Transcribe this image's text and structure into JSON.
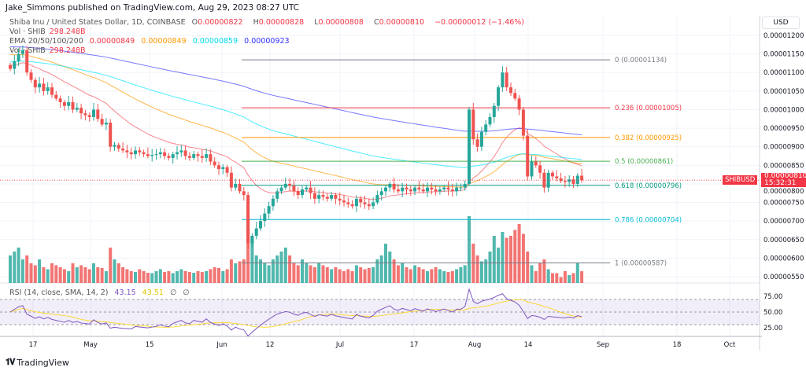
{
  "header": {
    "publisher": "Jake_Simmons published on TradingView.com, Aug 29, 2023 08:27 UTC"
  },
  "legend": {
    "symbol": "Shiba Inu / United States Dollar, 1D, COINBASE",
    "o_label": "O",
    "o": "0.00000822",
    "h_label": "H",
    "h": "0.00000828",
    "l_label": "L",
    "l": "0.00000808",
    "c_label": "C",
    "c": "0.00000810",
    "change": "−0.00000012 (−1.46%)",
    "vol_label": "Vol · SHIB",
    "vol": "298.248B",
    "ema_label": "EMA 20/50/100/200",
    "ema20": "0.00000849",
    "ema50": "0.00000849",
    "ema100": "0.00000859",
    "ema200": "0.00000923",
    "rsi_label": "RSI (14, close, SMA, 14, 2)",
    "rsi": "43.15",
    "rsi_sma": "43.51",
    "rsi_extra1": "∅",
    "rsi_extra2": "∅"
  },
  "axis": {
    "currency": "USD",
    "current_symbol": "SHIBUSD",
    "current_price": "0.00000810",
    "countdown": "15:32:31"
  },
  "brand": "TradingView",
  "colors": {
    "up": "#26a69a",
    "down": "#ef5350",
    "ema20": "#f7525f",
    "ema50": "#ff9800",
    "ema100": "#00e5ff",
    "ema200": "#3f3fff",
    "rsi": "#7e57c2",
    "rsi_sma": "#fdd835"
  },
  "chart_data": {
    "type": "candlestick",
    "start_date": "2023-04-14",
    "price_unit": "1e-8 USD",
    "ylim": [
      5.2e-06,
      1.21e-05
    ],
    "y_ticks": [
      "0.00001200",
      "0.00001150",
      "0.00001100",
      "0.00001050",
      "0.00001000",
      "0.00000950",
      "0.00000900",
      "0.00000850",
      "0.00000800",
      "0.00000750",
      "0.00000700",
      "0.00000650",
      "0.00000600",
      "0.00000550"
    ],
    "x_ticks": [
      "17",
      "May",
      "15",
      "Jun",
      "12",
      "Jul",
      "17",
      "Aug",
      "14",
      "Sep",
      "18",
      "Oct"
    ],
    "rsi_ticks": [
      "75.00",
      "50.00",
      "25.00"
    ],
    "close": [
      1110,
      1130,
      1150,
      1160,
      1100,
      1080,
      1060,
      1070,
      1050,
      1060,
      1040,
      1030,
      1020,
      1010,
      1020,
      1000,
      1005,
      990,
      985,
      980,
      1000,
      975,
      960,
      965,
      900,
      905,
      895,
      890,
      885,
      880,
      890,
      885,
      880,
      875,
      878,
      880,
      885,
      875,
      870,
      880,
      885,
      890,
      875,
      870,
      880,
      875,
      870,
      880,
      860,
      850,
      840,
      845,
      830,
      790,
      800,
      780,
      770,
      640,
      660,
      680,
      700,
      720,
      740,
      760,
      780,
      790,
      800,
      795,
      780,
      770,
      785,
      790,
      775,
      760,
      770,
      765,
      760,
      770,
      760,
      755,
      750,
      745,
      740,
      760,
      750,
      745,
      740,
      750,
      770,
      780,
      790,
      800,
      785,
      780,
      790,
      785,
      780,
      790,
      785,
      780,
      790,
      785,
      780,
      785,
      790,
      785,
      780,
      790,
      790,
      800,
      1000,
      920,
      900,
      940,
      960,
      980,
      1010,
      1060,
      1100,
      1060,
      1045,
      1030,
      1000,
      930,
      820,
      860,
      850,
      830,
      790,
      830,
      820,
      815,
      808,
      805,
      812,
      800,
      822,
      810
    ],
    "volume_B": [
      700,
      800,
      900,
      600,
      700,
      500,
      450,
      600,
      400,
      350,
      500,
      450,
      400,
      350,
      300,
      500,
      400,
      450,
      400,
      350,
      500,
      400,
      380,
      300,
      900,
      600,
      500,
      400,
      350,
      300,
      280,
      350,
      300,
      260,
      250,
      300,
      350,
      280,
      300,
      250,
      300,
      350,
      300,
      280,
      260,
      300,
      280,
      300,
      350,
      400,
      380,
      300,
      350,
      600,
      500,
      550,
      600,
      1700,
      1100,
      700,
      600,
      500,
      450,
      600,
      700,
      800,
      900,
      700,
      500,
      450,
      600,
      500,
      450,
      400,
      500,
      450,
      400,
      350,
      400,
      350,
      300,
      350,
      300,
      450,
      400,
      350,
      380,
      400,
      600,
      700,
      1000,
      800,
      600,
      450,
      500,
      400,
      350,
      450,
      400,
      350,
      300,
      350,
      400,
      350,
      300,
      280,
      300,
      350,
      400,
      450,
      1700,
      1000,
      700,
      550,
      600,
      800,
      1200,
      900,
      1300,
      1150,
      1200,
      1350,
      1500,
      1250,
      800,
      450,
      300,
      500,
      600,
      350,
      250,
      250,
      150,
      300,
      200,
      250,
      500,
      298
    ],
    "fib": [
      {
        "label": "0 (0.00001134)",
        "value": 1134,
        "color": "#787b86"
      },
      {
        "label": "0.236 (0.00001005)",
        "value": 1005,
        "color": "#f23645"
      },
      {
        "label": "0.382 (0.00000925)",
        "value": 925,
        "color": "#ff9800"
      },
      {
        "label": "0.5 (0.00000861)",
        "value": 861,
        "color": "#4caf50"
      },
      {
        "label": "0.618 (0.00000796)",
        "value": 796,
        "color": "#089981"
      },
      {
        "label": "0.786 (0.00000704)",
        "value": 704,
        "color": "#00bcd4"
      },
      {
        "label": "1 (0.00000587)",
        "value": 587,
        "color": "#787b86"
      }
    ]
  }
}
